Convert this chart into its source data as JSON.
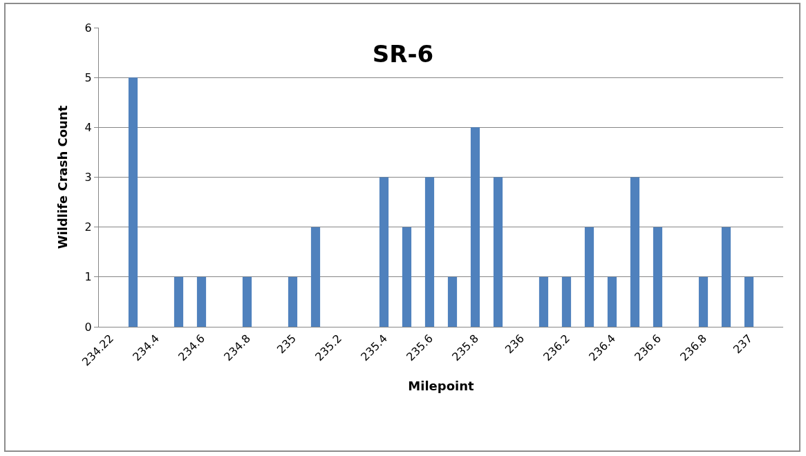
{
  "chart_data": {
    "type": "bar",
    "title": "SR-6",
    "xlabel": "Milepoint",
    "ylabel": "Wildlife Crash Count",
    "categories": [
      "234.22",
      null,
      "234.4",
      null,
      "234.6",
      null,
      "234.8",
      null,
      "235",
      null,
      "235.2",
      null,
      "235.4",
      null,
      "235.6",
      null,
      "235.8",
      null,
      "236",
      null,
      "236.2",
      null,
      "236.4",
      null,
      "236.6",
      null,
      "236.8",
      null,
      "237",
      null
    ],
    "values": [
      0,
      5,
      0,
      1,
      1,
      0,
      1,
      0,
      1,
      2,
      0,
      0,
      3,
      2,
      3,
      1,
      4,
      3,
      0,
      1,
      1,
      2,
      1,
      3,
      2,
      0,
      1,
      2,
      1,
      0
    ],
    "color": "#4f81bd",
    "ylim": [
      0,
      6
    ],
    "yticks": [
      0,
      1,
      2,
      3,
      4,
      5,
      6
    ],
    "grid": "y"
  }
}
